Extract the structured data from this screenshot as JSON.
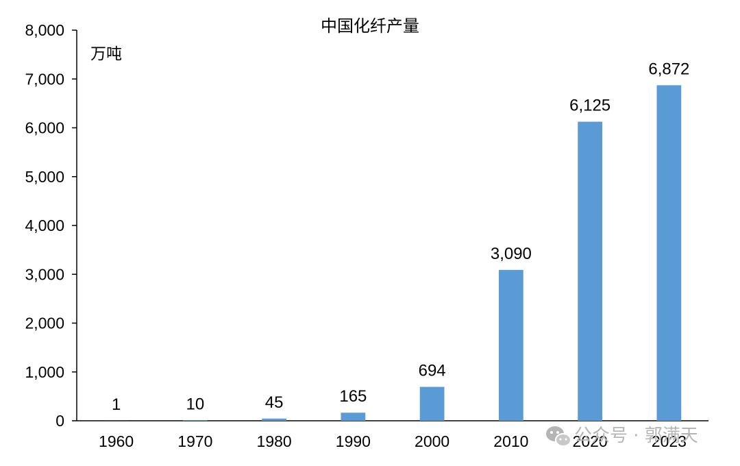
{
  "chart_data": {
    "type": "bar",
    "title": "中国化纤产量",
    "unit": "万吨",
    "categories": [
      "1960",
      "1970",
      "1980",
      "1990",
      "2000",
      "2010",
      "2020",
      "2023"
    ],
    "values": [
      1,
      10,
      45,
      165,
      694,
      3090,
      6125,
      6872
    ],
    "value_labels": [
      "1",
      "10",
      "45",
      "165",
      "694",
      "3,090",
      "6,125",
      "6,872"
    ],
    "ylim": [
      0,
      8000
    ],
    "yticks": [
      0,
      1000,
      2000,
      3000,
      4000,
      5000,
      6000,
      7000,
      8000
    ],
    "ytick_labels": [
      "0",
      "1,000",
      "2,000",
      "3,000",
      "4,000",
      "5,000",
      "6,000",
      "7,000",
      "8,000"
    ],
    "grid": false,
    "legend": "none",
    "bar_color": "#5b9bd5"
  },
  "watermark": {
    "icon": "wechat-icon",
    "text": "公众号 · 郭满天"
  }
}
